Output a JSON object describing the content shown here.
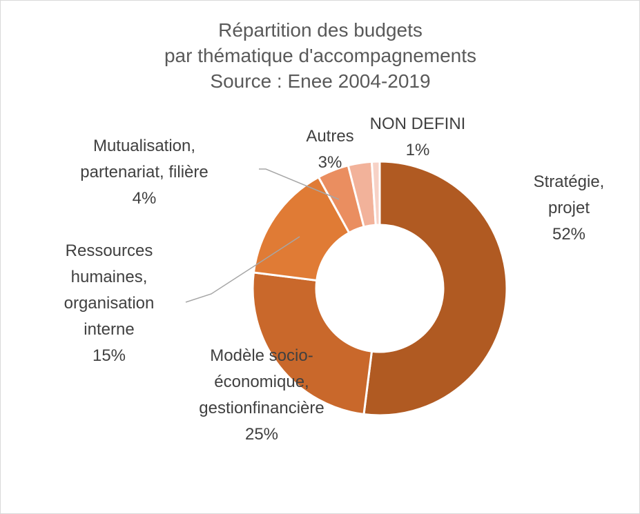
{
  "chart_data": {
    "type": "pie",
    "variant": "doughnut",
    "title_lines": [
      "Répartition des budgets",
      "par thématique d'accompagnements",
      "Source : Enee 2004-2019"
    ],
    "unit": "%",
    "legend": "none",
    "slices": [
      {
        "label_lines": [
          "Stratégie,",
          "projet"
        ],
        "value": 52,
        "value_label": "52%",
        "color": "#B05A22"
      },
      {
        "label_lines": [
          "Modèle socio-",
          "économique,",
          "gestionfinancière"
        ],
        "value": 25,
        "value_label": "25%",
        "color": "#C9682B"
      },
      {
        "label_lines": [
          "Ressources",
          "humaines,",
          "organisation",
          "interne"
        ],
        "value": 15,
        "value_label": "15%",
        "color": "#E07B35"
      },
      {
        "label_lines": [
          "Mutualisation,",
          "partenariat, filière"
        ],
        "value": 4,
        "value_label": "4%",
        "color": "#EA8E60"
      },
      {
        "label_lines": [
          "Autres"
        ],
        "value": 3,
        "value_label": "3%",
        "color": "#F2B29A"
      },
      {
        "label_lines": [
          "NON DEFINI"
        ],
        "value": 1,
        "value_label": "1%",
        "color": "#F7D2C6"
      }
    ]
  }
}
